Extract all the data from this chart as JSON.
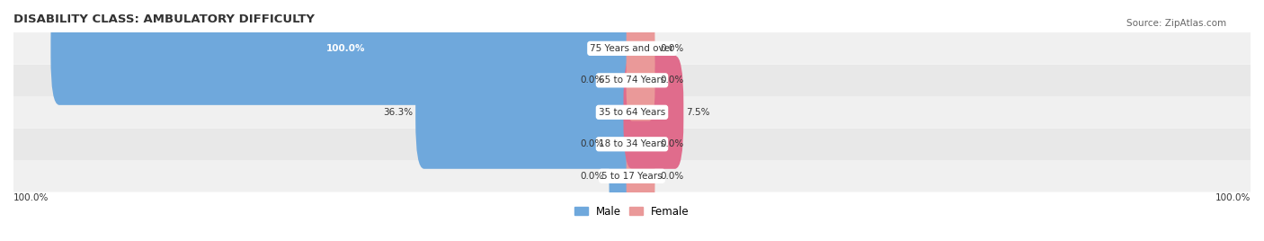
{
  "title": "DISABILITY CLASS: AMBULATORY DIFFICULTY",
  "source": "Source: ZipAtlas.com",
  "categories": [
    "5 to 17 Years",
    "18 to 34 Years",
    "35 to 64 Years",
    "65 to 74 Years",
    "75 Years and over"
  ],
  "male_values": [
    0.0,
    0.0,
    36.3,
    0.0,
    100.0
  ],
  "female_values": [
    0.0,
    0.0,
    7.5,
    0.0,
    0.0
  ],
  "male_color": "#6fa8dc",
  "female_color": "#ea9999",
  "female_color_bright": "#e06c8c",
  "row_bg_colors": [
    "#f0f0f0",
    "#e8e8e8"
  ],
  "max_value": 100.0,
  "bg_color": "#ffffff"
}
